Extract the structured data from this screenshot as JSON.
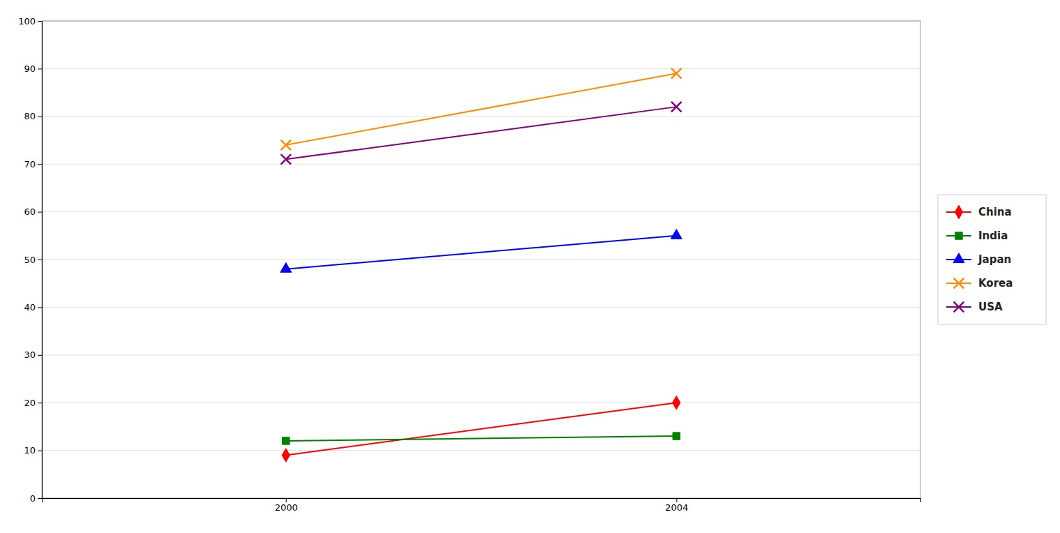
{
  "chart_data": {
    "type": "line",
    "x": [
      2000,
      2004
    ],
    "series": [
      {
        "name": "China",
        "color": "#FF0000",
        "marker": "diamond",
        "values": [
          9,
          20
        ]
      },
      {
        "name": "India",
        "color": "#008000",
        "marker": "square",
        "values": [
          12,
          13
        ]
      },
      {
        "name": "Japan",
        "color": "#0000FF",
        "marker": "triangle",
        "values": [
          48,
          55
        ]
      },
      {
        "name": "Korea",
        "color": "#FF8C00",
        "marker": "x",
        "values": [
          74,
          89
        ]
      },
      {
        "name": "USA",
        "color": "#800080",
        "marker": "x",
        "values": [
          71,
          82
        ]
      }
    ],
    "xlim": [
      1997.5,
      2006.5
    ],
    "xticks": [
      2000,
      2004
    ],
    "ylim": [
      0,
      100
    ],
    "yticks": [
      0,
      10,
      20,
      30,
      40,
      50,
      60,
      70,
      80,
      90,
      100
    ],
    "grid": true,
    "legend": "right"
  }
}
